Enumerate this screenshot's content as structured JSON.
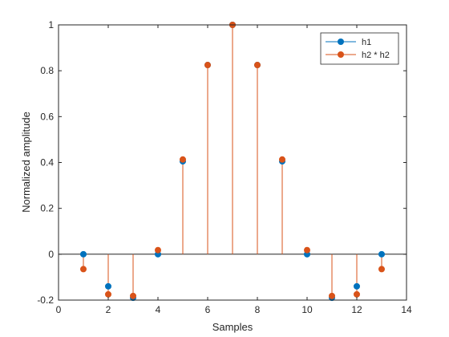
{
  "chart_data": {
    "type": "stem",
    "title": "",
    "xlabel": "Samples",
    "ylabel": "Normalized amplitude",
    "xlim": [
      0,
      14
    ],
    "ylim": [
      -0.2,
      1
    ],
    "xticks": [
      0,
      2,
      4,
      6,
      8,
      10,
      12,
      14
    ],
    "yticks": [
      -0.2,
      0,
      0.2,
      0.4,
      0.6,
      0.8,
      1
    ],
    "grid": false,
    "legend_position": "top-right",
    "series": [
      {
        "name": "h1",
        "color": "#0072BD",
        "x": [
          1,
          2,
          3,
          4,
          5,
          6,
          7,
          8,
          9,
          10,
          11,
          12,
          13
        ],
        "values": [
          0.0,
          -0.14,
          -0.19,
          0.0,
          0.405,
          0.825,
          1.0,
          0.825,
          0.405,
          0.0,
          -0.19,
          -0.14,
          0.0
        ]
      },
      {
        "name": "h2 * h2",
        "color": "#D95319",
        "x": [
          1,
          2,
          3,
          4,
          5,
          6,
          7,
          8,
          9,
          10,
          11,
          12,
          13
        ],
        "values": [
          -0.065,
          -0.175,
          -0.182,
          0.018,
          0.413,
          0.825,
          1.0,
          0.825,
          0.413,
          0.018,
          -0.182,
          -0.175,
          -0.065
        ]
      }
    ]
  }
}
